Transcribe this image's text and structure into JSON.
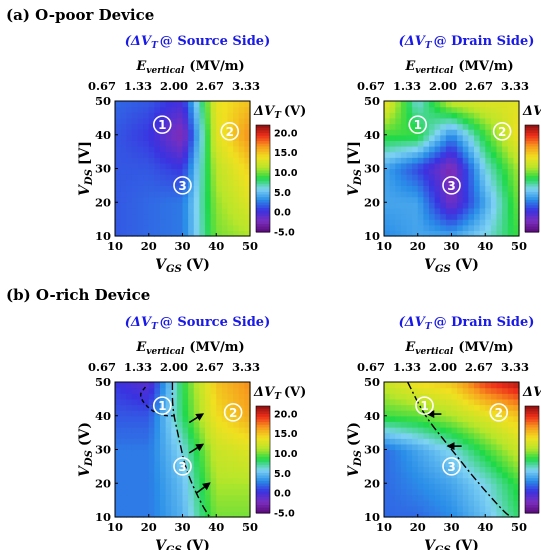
{
  "sections": [
    {
      "label": "(a) O-poor Device"
    },
    {
      "label": "(b) O-rich Device"
    }
  ],
  "common": {
    "top_axis_label_main": "E",
    "top_axis_label_sub": "vertical",
    "top_axis_unit": "(MV/m)",
    "top_ticks": [
      "0.67",
      "1.33",
      "2.00",
      "2.67",
      "3.33"
    ],
    "x_label_main": "V",
    "x_label_sub": "GS",
    "x_label_unit": "(V)",
    "y_label_main": "V",
    "y_label_sub": "DS",
    "colorbar_title": "ΔV",
    "colorbar_title_sub": "T",
    "colorbar_unit": "(V)",
    "colorbar_ticks": [
      "20.0",
      "15.0",
      "10.0",
      "5.0",
      "0.0",
      "-5.0"
    ],
    "colorbar_values": [
      20,
      15,
      10,
      5,
      0,
      -5
    ],
    "colorbar_range": [
      -5,
      22
    ],
    "colors": {
      "blue_title": "#1a1ae6",
      "scale": [
        "#5a0a7a",
        "#7b2fbe",
        "#3a32e0",
        "#2a8ee8",
        "#7fd3f3",
        "#20d94a",
        "#b8e62a",
        "#f0e020",
        "#f79a1e",
        "#ee2e1a",
        "#8a0f12"
      ]
    }
  },
  "chart_data": [
    {
      "type": "heatmap",
      "title_main": "(ΔV",
      "title_sub": "T",
      "title_rest": "@ Source Side)",
      "ylabel_unit": "[V]",
      "x": [
        10,
        20,
        30,
        40,
        50
      ],
      "y": [
        10,
        20,
        30,
        40,
        50
      ],
      "xticks": [
        "10",
        "20",
        "30",
        "40",
        "50"
      ],
      "yticks": [
        "10",
        "20",
        "30",
        "40",
        "50"
      ],
      "xlim": [
        10,
        50
      ],
      "ylim": [
        10,
        50
      ],
      "z": [
        [
          1.5,
          2.0,
          2.5,
          10.0,
          11.0
        ],
        [
          1.5,
          2.0,
          2.5,
          10.5,
          13.0
        ],
        [
          1.5,
          1.5,
          0.5,
          11.5,
          14.5
        ],
        [
          1.5,
          0.5,
          -3.0,
          13.0,
          17.0
        ],
        [
          2.0,
          1.5,
          0.0,
          13.5,
          15.0
        ]
      ],
      "markers": [
        {
          "label": "1",
          "x": 24,
          "y": 43
        },
        {
          "label": "2",
          "x": 44,
          "y": 41
        },
        {
          "label": "3",
          "x": 30,
          "y": 25
        }
      ],
      "arrows": [],
      "dashed": [],
      "dashdot": []
    },
    {
      "type": "heatmap",
      "title_main": "(ΔV",
      "title_sub": "T",
      "title_rest": "@ Drain Side)",
      "ylabel_unit": "[V]",
      "x": [
        10,
        20,
        30,
        40,
        50
      ],
      "y": [
        10,
        20,
        30,
        40,
        50
      ],
      "xticks": [
        "10",
        "20",
        "30",
        "40",
        "50"
      ],
      "yticks": [
        "10",
        "20",
        "30",
        "40",
        "50"
      ],
      "xlim": [
        10,
        50
      ],
      "ylim": [
        10,
        50
      ],
      "z": [
        [
          3.0,
          4.0,
          4.0,
          6.0,
          9.0
        ],
        [
          4.0,
          4.0,
          -2.0,
          4.0,
          10.0
        ],
        [
          4.0,
          1.0,
          -3.0,
          6.0,
          11.0
        ],
        [
          9.0,
          9.0,
          3.0,
          9.0,
          14.0
        ],
        [
          14.0,
          6.0,
          12.0,
          13.0,
          13.0
        ]
      ],
      "markers": [
        {
          "label": "1",
          "x": 20,
          "y": 43
        },
        {
          "label": "2",
          "x": 45,
          "y": 41
        },
        {
          "label": "3",
          "x": 30,
          "y": 25
        }
      ],
      "arrows": [],
      "dashed": [],
      "dashdot": []
    },
    {
      "type": "heatmap",
      "title_main": "(ΔV",
      "title_sub": "T",
      "title_rest": "@ Source Side)",
      "ylabel_unit": "(V)",
      "x": [
        10,
        20,
        30,
        40,
        50
      ],
      "y": [
        10,
        20,
        30,
        40,
        50
      ],
      "xticks": [
        "10",
        "20",
        "30",
        "40",
        "50"
      ],
      "yticks": [
        "10",
        "20",
        "30",
        "40",
        "50"
      ],
      "xlim": [
        10,
        50
      ],
      "ylim": [
        10,
        50
      ],
      "z": [
        [
          2.5,
          2.5,
          4.5,
          10.0,
          10.0
        ],
        [
          2.5,
          2.5,
          5.0,
          11.0,
          11.0
        ],
        [
          2.5,
          2.5,
          6.0,
          12.0,
          13.0
        ],
        [
          1.5,
          1.5,
          8.0,
          14.0,
          16.0
        ],
        [
          0.5,
          -1.0,
          8.5,
          15.0,
          17.0
        ]
      ],
      "markers": [
        {
          "label": "1",
          "x": 24,
          "y": 43
        },
        {
          "label": "2",
          "x": 45,
          "y": 41
        },
        {
          "label": "3",
          "x": 30,
          "y": 25
        }
      ],
      "arrows": [
        {
          "x1": 32,
          "y1": 38,
          "x2": 36,
          "y2": 40.5
        },
        {
          "x1": 32,
          "y1": 29,
          "x2": 36,
          "y2": 31.5
        },
        {
          "x1": 34,
          "y1": 17,
          "x2": 38,
          "y2": 20
        }
      ],
      "dashed": [
        [
          19,
          48.5
        ],
        [
          17,
          46
        ],
        [
          20,
          42
        ],
        [
          24,
          40
        ],
        [
          28,
          40
        ]
      ],
      "dashdot": [
        [
          27,
          50
        ],
        [
          27,
          42
        ],
        [
          29,
          33
        ],
        [
          31,
          24
        ],
        [
          35,
          15
        ],
        [
          38,
          10
        ]
      ]
    },
    {
      "type": "heatmap",
      "title_main": "(ΔV",
      "title_sub": "T",
      "title_rest": "@ Drain Side)",
      "ylabel_unit": "(V)",
      "x": [
        10,
        20,
        30,
        40,
        50
      ],
      "y": [
        10,
        20,
        30,
        40,
        50
      ],
      "xticks": [
        "10",
        "20",
        "30",
        "40",
        "50"
      ],
      "yticks": [
        "10",
        "20",
        "30",
        "40",
        "50"
      ],
      "xlim": [
        10,
        50
      ],
      "ylim": [
        10,
        50
      ],
      "z": [
        [
          2.0,
          2.0,
          3.0,
          5.0,
          8.0
        ],
        [
          2.0,
          3.0,
          4.0,
          6.0,
          9.0
        ],
        [
          2.0,
          4.0,
          6.0,
          9.0,
          12.0
        ],
        [
          9.0,
          9.5,
          11.0,
          13.0,
          15.0
        ],
        [
          12.0,
          14.0,
          15.0,
          19.0,
          21.0
        ]
      ],
      "markers": [
        {
          "label": "1",
          "x": 22,
          "y": 43
        },
        {
          "label": "2",
          "x": 44,
          "y": 41
        },
        {
          "label": "3",
          "x": 30,
          "y": 25
        }
      ],
      "arrows": [
        {
          "x1": 27,
          "y1": 40.5,
          "x2": 23,
          "y2": 40.5
        },
        {
          "x1": 33,
          "y1": 31,
          "x2": 29,
          "y2": 31
        }
      ],
      "dashed": [],
      "dashdot": [
        [
          17,
          50
        ],
        [
          22,
          40
        ],
        [
          30,
          30
        ],
        [
          38,
          20
        ],
        [
          46,
          11
        ],
        [
          48,
          10
        ]
      ]
    }
  ]
}
